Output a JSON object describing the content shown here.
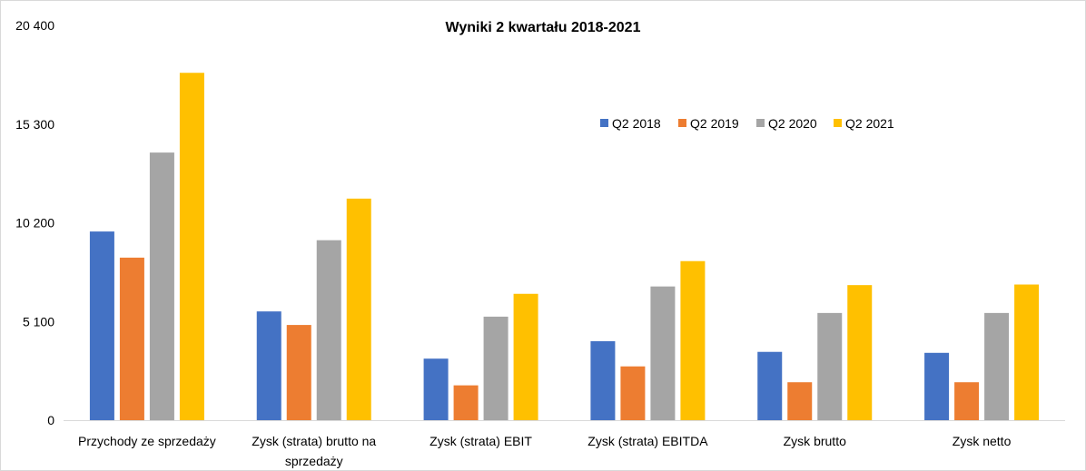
{
  "chart_data": {
    "type": "bar",
    "title": "Wyniki 2 kwartału 2018-2021",
    "xlabel": "",
    "ylabel": "",
    "ylim": [
      0,
      20400
    ],
    "yticks": [
      0,
      5100,
      10200,
      15300,
      20400
    ],
    "ytick_labels": [
      "0",
      "5 100",
      "10 200",
      "15 300",
      "20 400"
    ],
    "grid": false,
    "legend_position": "top-right",
    "categories": [
      [
        "Przychody ze sprzedaży"
      ],
      [
        "Zysk (strata) brutto na",
        "sprzedaży"
      ],
      [
        "Zysk (strata) EBIT"
      ],
      [
        "Zysk (strata) EBITDA"
      ],
      [
        "Zysk brutto"
      ],
      [
        "Zysk netto"
      ]
    ],
    "series": [
      {
        "name": "Q2 2018",
        "color": "#4472C4",
        "values": [
          9750,
          5620,
          3180,
          4080,
          3530,
          3480
        ]
      },
      {
        "name": "Q2 2019",
        "color": "#ED7D31",
        "values": [
          8400,
          4920,
          1800,
          2780,
          1960,
          1960
        ]
      },
      {
        "name": "Q2 2020",
        "color": "#A5A5A5",
        "values": [
          13830,
          9300,
          5350,
          6910,
          5540,
          5540
        ]
      },
      {
        "name": "Q2 2021",
        "color": "#FFC000",
        "values": [
          17950,
          11450,
          6530,
          8220,
          6980,
          7010
        ]
      }
    ]
  }
}
